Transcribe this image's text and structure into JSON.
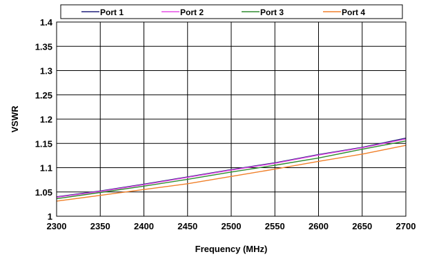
{
  "chart_data": {
    "type": "line",
    "title": "",
    "xlabel": "Frequency (MHz)",
    "ylabel": "VSWR",
    "xlim": [
      2300,
      2700
    ],
    "ylim": [
      1,
      1.4
    ],
    "x_ticks": [
      2300,
      2350,
      2400,
      2450,
      2500,
      2550,
      2600,
      2650,
      2700
    ],
    "y_ticks": [
      1,
      1.05,
      1.1,
      1.15,
      1.2,
      1.25,
      1.3,
      1.35,
      1.4
    ],
    "x_tick_labels": [
      "2300",
      "2350",
      "2400",
      "2450",
      "2500",
      "2550",
      "2600",
      "2650",
      "2700"
    ],
    "y_tick_labels": [
      "1",
      "1.05",
      "1.1",
      "1.15",
      "1.2",
      "1.25",
      "1.3",
      "1.35",
      "1.4"
    ],
    "grid": true,
    "legend_position": "top",
    "series": [
      {
        "name": "Port 1",
        "color": "#1f1f7a",
        "x": [
          2300,
          2350,
          2400,
          2450,
          2500,
          2550,
          2600,
          2650,
          2700
        ],
        "values": [
          1.04,
          1.052,
          1.066,
          1.081,
          1.096,
          1.11,
          1.127,
          1.142,
          1.161
        ]
      },
      {
        "name": "Port 2",
        "color": "#e64be6",
        "x": [
          2300,
          2350,
          2400,
          2450,
          2500,
          2550,
          2600,
          2650,
          2700
        ],
        "values": [
          1.039,
          1.051,
          1.065,
          1.08,
          1.095,
          1.109,
          1.126,
          1.141,
          1.159
        ]
      },
      {
        "name": "Port 3",
        "color": "#2e8b2e",
        "x": [
          2300,
          2350,
          2400,
          2450,
          2500,
          2550,
          2600,
          2650,
          2700
        ],
        "values": [
          1.036,
          1.049,
          1.062,
          1.076,
          1.091,
          1.105,
          1.12,
          1.138,
          1.155
        ]
      },
      {
        "name": "Port 4",
        "color": "#f07f28",
        "x": [
          2300,
          2350,
          2400,
          2450,
          2500,
          2550,
          2600,
          2650,
          2700
        ],
        "values": [
          1.031,
          1.043,
          1.055,
          1.067,
          1.082,
          1.097,
          1.113,
          1.128,
          1.146
        ]
      }
    ]
  }
}
